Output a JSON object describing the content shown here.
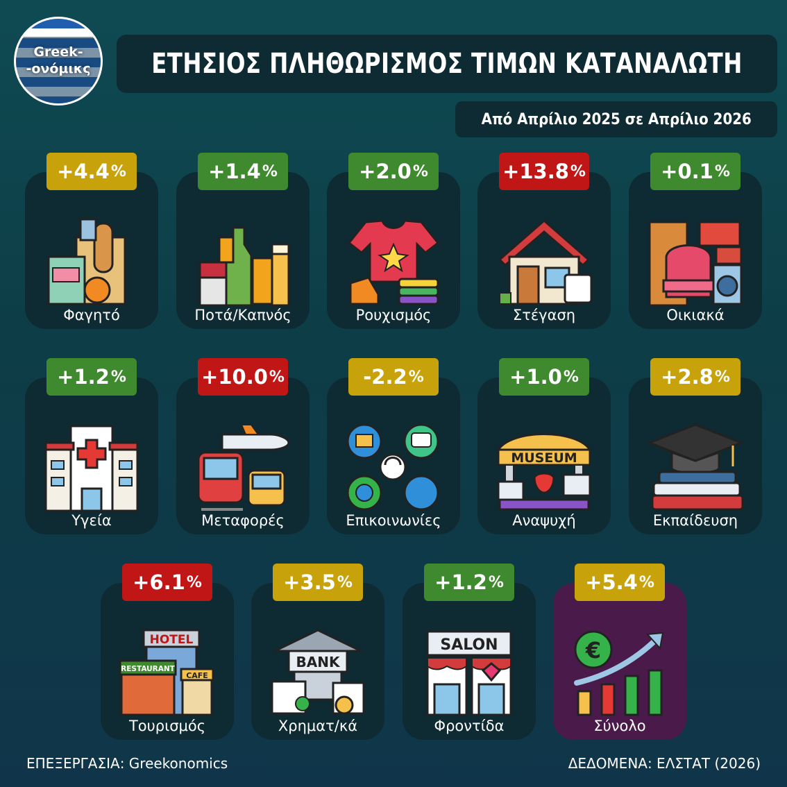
{
  "logo": {
    "line1": "Greek-",
    "line2": "-ονόμικς"
  },
  "title": "ΕΤΗΣΙΟΣ ΠΛΗΘΩΡΙΣΜΟΣ ΤΙΜΩΝ ΚΑΤΑΝΑΛΩΤΗ",
  "subtitle": "Από Απρίλιο 2025 σε Απρίλιο 2026",
  "colors": {
    "yellow": "#c8a20a",
    "green": "#3f8a2e",
    "red": "#c01616",
    "card": "#0e2a33",
    "total_card": "#4a1a4a"
  },
  "categories": [
    {
      "label": "Φαγητό",
      "value": "+4.4",
      "unit": "%",
      "color": "yellow",
      "icon": "groceries-icon"
    },
    {
      "label": "Ποτά/Καπνός",
      "value": "+1.4",
      "unit": "%",
      "color": "green",
      "icon": "drinks-tobacco-icon"
    },
    {
      "label": "Ρουχισμός",
      "value": "+2.0",
      "unit": "%",
      "color": "green",
      "icon": "clothing-icon"
    },
    {
      "label": "Στέγαση",
      "value": "+13.8",
      "unit": "%",
      "color": "red",
      "icon": "house-icon"
    },
    {
      "label": "Οικιακά",
      "value": "+0.1",
      "unit": "%",
      "color": "green",
      "icon": "furniture-icon"
    },
    {
      "label": "Υγεία",
      "value": "+1.2",
      "unit": "%",
      "color": "green",
      "icon": "hospital-icon"
    },
    {
      "label": "Μεταφορές",
      "value": "+10.0",
      "unit": "%",
      "color": "red",
      "icon": "transport-icon"
    },
    {
      "label": "Επικοινωνίες",
      "value": "-2.2",
      "unit": "%",
      "color": "yellow",
      "icon": "communications-icon"
    },
    {
      "label": "Αναψυχή",
      "value": "+1.0",
      "unit": "%",
      "color": "green",
      "icon": "museum-icon"
    },
    {
      "label": "Εκπαίδευση",
      "value": "+2.8",
      "unit": "%",
      "color": "yellow",
      "icon": "education-icon"
    },
    {
      "label": "Τουρισμός",
      "value": "+6.1",
      "unit": "%",
      "color": "red",
      "icon": "hotel-icon"
    },
    {
      "label": "Χρηματ/κά",
      "value": "+3.5",
      "unit": "%",
      "color": "yellow",
      "icon": "bank-icon"
    },
    {
      "label": "Φροντίδα",
      "value": "+1.2",
      "unit": "%",
      "color": "green",
      "icon": "salon-icon"
    },
    {
      "label": "Σύνολο",
      "value": "+5.4",
      "unit": "%",
      "color": "yellow",
      "icon": "growth-chart-icon"
    }
  ],
  "icon_text": {
    "museum": "MUSEUM",
    "hotel": "HOTEL",
    "restaurant": "RESTAURANT",
    "cafe": "CAFE",
    "bank": "BANK",
    "salon": "SALON"
  },
  "footer": {
    "left": "ΕΠΕΞΕΡΓΑΣΙΑ: Greekonomics",
    "right": "ΔΕΔΟΜΕΝΑ: ΕΛΣΤΑΤ (2026)"
  }
}
